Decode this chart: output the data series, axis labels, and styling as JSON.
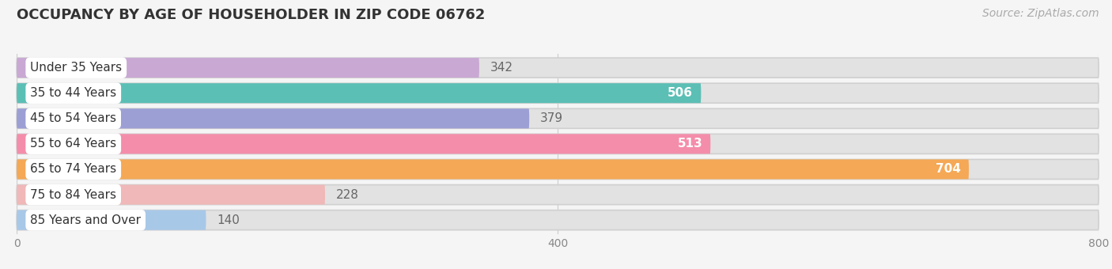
{
  "title": "OCCUPANCY BY AGE OF HOUSEHOLDER IN ZIP CODE 06762",
  "source": "Source: ZipAtlas.com",
  "categories": [
    "Under 35 Years",
    "35 to 44 Years",
    "45 to 54 Years",
    "55 to 64 Years",
    "65 to 74 Years",
    "75 to 84 Years",
    "85 Years and Over"
  ],
  "values": [
    342,
    506,
    379,
    513,
    704,
    228,
    140
  ],
  "bar_colors": [
    "#c9a8d4",
    "#5bbfb5",
    "#9b9fd4",
    "#f48daa",
    "#f5a855",
    "#f0b8b8",
    "#a8c8e8"
  ],
  "xlim": [
    0,
    800
  ],
  "xticks": [
    0,
    400,
    800
  ],
  "background_color": "#f5f5f5",
  "bar_background_color": "#e2e2e2",
  "title_fontsize": 13,
  "label_fontsize": 11,
  "value_fontsize": 11,
  "source_fontsize": 10
}
